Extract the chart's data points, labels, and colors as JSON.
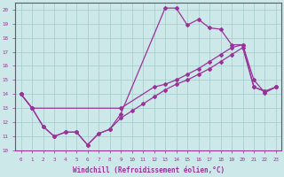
{
  "xlabel": "Windchill (Refroidissement éolien,°C)",
  "ylabel": "",
  "xlim": [
    -0.5,
    23.5
  ],
  "ylim": [
    10,
    20.5
  ],
  "xticks": [
    0,
    1,
    2,
    3,
    4,
    5,
    6,
    7,
    8,
    9,
    10,
    11,
    12,
    13,
    14,
    15,
    16,
    17,
    18,
    19,
    20,
    21,
    22,
    23
  ],
  "yticks": [
    10,
    11,
    12,
    13,
    14,
    15,
    16,
    17,
    18,
    19,
    20
  ],
  "bg_color": "#cce8e8",
  "grid_color": "#aacece",
  "line_color": "#993399",
  "line1_x": [
    0,
    1,
    2,
    3,
    4,
    5,
    6,
    7,
    8,
    9,
    13,
    14,
    15,
    16,
    17,
    18,
    19,
    20,
    21,
    22,
    23
  ],
  "line1_y": [
    14.0,
    13.0,
    11.7,
    11.0,
    11.3,
    11.3,
    10.4,
    11.2,
    11.5,
    12.6,
    20.1,
    20.1,
    18.9,
    19.3,
    18.7,
    18.6,
    17.5,
    17.5,
    15.0,
    14.1,
    14.5
  ],
  "line2_x": [
    0,
    1,
    9,
    12,
    13,
    14,
    15,
    16,
    17,
    18,
    19,
    20,
    21,
    22,
    23
  ],
  "line2_y": [
    14.0,
    13.0,
    13.0,
    14.5,
    14.7,
    15.0,
    15.4,
    15.8,
    16.3,
    16.8,
    17.3,
    17.5,
    14.5,
    14.2,
    14.5
  ],
  "line3_x": [
    0,
    1,
    2,
    3,
    4,
    5,
    6,
    7,
    8,
    9,
    10,
    11,
    12,
    13,
    14,
    15,
    16,
    17,
    18,
    19,
    20,
    21,
    22,
    23
  ],
  "line3_y": [
    14.0,
    13.0,
    11.7,
    11.0,
    11.3,
    11.3,
    10.4,
    11.2,
    11.5,
    12.3,
    12.8,
    13.3,
    13.8,
    14.3,
    14.7,
    15.0,
    15.4,
    15.8,
    16.3,
    16.8,
    17.3,
    14.5,
    14.2,
    14.5
  ],
  "marker": "D",
  "markersize": 2.0,
  "linewidth": 0.9
}
